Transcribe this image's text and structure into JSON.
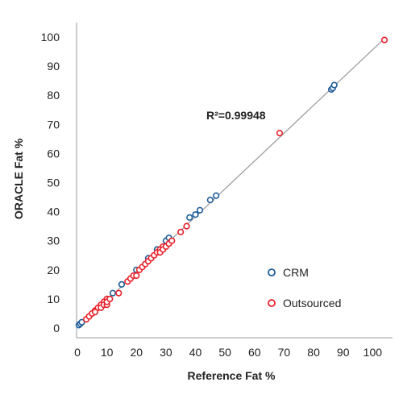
{
  "chart_data": {
    "type": "scatter",
    "xlabel": "Reference Fat %",
    "ylabel": "ORACLE Fat %",
    "xlim": [
      0,
      105
    ],
    "ylim": [
      0,
      100
    ],
    "xticks": [
      0,
      10,
      20,
      30,
      40,
      50,
      60,
      70,
      80,
      90,
      100
    ],
    "yticks": [
      0,
      10,
      20,
      30,
      40,
      50,
      60,
      70,
      80,
      90,
      100
    ],
    "grid": false,
    "legend_position": "bottom-right",
    "annotation": "R²=0.99948",
    "fit_line": {
      "x": [
        0,
        104
      ],
      "y": [
        0,
        99.5
      ],
      "color": "#999999"
    },
    "series": [
      {
        "name": "CRM",
        "color": "#1f5c99",
        "points": [
          [
            0.5,
            1
          ],
          [
            1,
            1.5
          ],
          [
            1.5,
            2
          ],
          [
            12,
            12
          ],
          [
            15,
            15
          ],
          [
            20,
            20
          ],
          [
            24,
            24
          ],
          [
            27,
            27
          ],
          [
            30,
            30
          ],
          [
            31,
            31
          ],
          [
            38,
            38
          ],
          [
            40,
            39
          ],
          [
            41.5,
            40.5
          ],
          [
            45,
            44
          ],
          [
            47,
            45.5
          ],
          [
            86,
            82
          ],
          [
            86.5,
            82.5
          ],
          [
            87,
            83.5
          ]
        ]
      },
      {
        "name": "Outsourced",
        "color": "#e8202a",
        "points": [
          [
            3,
            3
          ],
          [
            4,
            4
          ],
          [
            5,
            5
          ],
          [
            6,
            6
          ],
          [
            7,
            7
          ],
          [
            8,
            8
          ],
          [
            9,
            9
          ],
          [
            10,
            10
          ],
          [
            6,
            5.5
          ],
          [
            8,
            7
          ],
          [
            9,
            8
          ],
          [
            10,
            8
          ],
          [
            10,
            9
          ],
          [
            11,
            10
          ],
          [
            14,
            12
          ],
          [
            17,
            16
          ],
          [
            18,
            17
          ],
          [
            19,
            18
          ],
          [
            20,
            18
          ],
          [
            21,
            20
          ],
          [
            22,
            21
          ],
          [
            23,
            22
          ],
          [
            24,
            23
          ],
          [
            25,
            24
          ],
          [
            26,
            25
          ],
          [
            27,
            26
          ],
          [
            28,
            27
          ],
          [
            29,
            28
          ],
          [
            28,
            26
          ],
          [
            29,
            27
          ],
          [
            30,
            28
          ],
          [
            31,
            29
          ],
          [
            32,
            30
          ],
          [
            35,
            33
          ],
          [
            37,
            35
          ],
          [
            68.5,
            67
          ],
          [
            104,
            99
          ]
        ]
      }
    ]
  }
}
